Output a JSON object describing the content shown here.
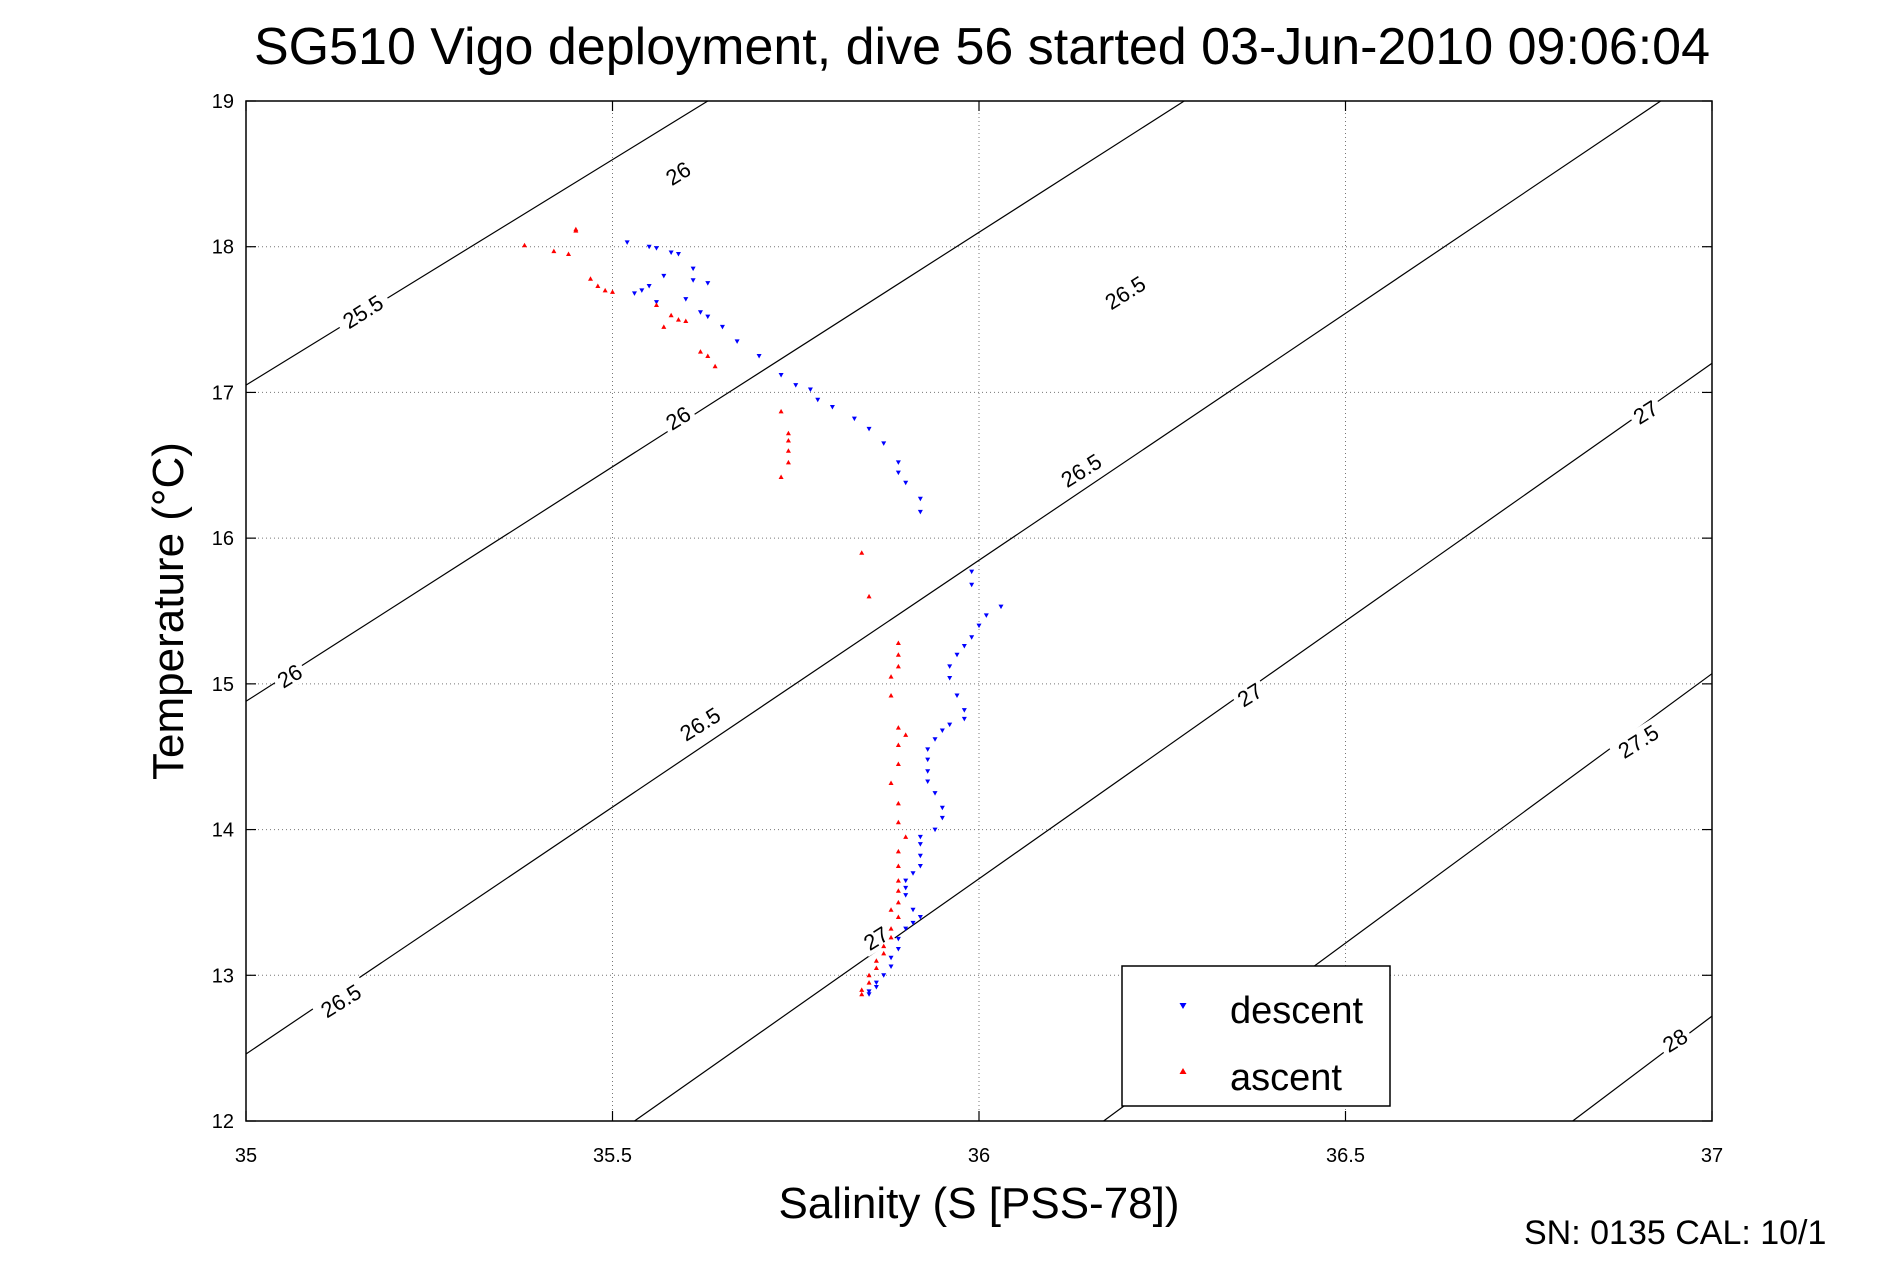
{
  "chart_data": {
    "type": "scatter",
    "title": "SG510 Vigo deployment, dive 56 started 03-Jun-2010 09:06:04",
    "xlabel": "Salinity (S [PSS-78])",
    "ylabel": "Temperature (°C)",
    "xlim": [
      35,
      37
    ],
    "ylim": [
      12,
      19
    ],
    "xticks": [
      35,
      35.5,
      36,
      36.5,
      37
    ],
    "xtick_labels": [
      "35",
      "35.5",
      "36",
      "36.5",
      "37"
    ],
    "yticks": [
      12,
      13,
      14,
      15,
      16,
      17,
      18,
      19
    ],
    "ytick_labels": [
      "12",
      "13",
      "14",
      "15",
      "16",
      "17",
      "18",
      "19"
    ],
    "grid": true,
    "legend_position": "bottom-right",
    "footer": "SN: 0135  CAL: 10/1",
    "density_contours": [
      {
        "level": 25.5,
        "label": "25.5",
        "points": [
          [
            35.0,
            17.05
          ],
          [
            35.63,
            19.0
          ]
        ]
      },
      {
        "level": 26.0,
        "label": "26",
        "points": [
          [
            35.0,
            14.88
          ],
          [
            36.28,
            19.0
          ]
        ]
      },
      {
        "level": 26.5,
        "label": "26.5",
        "points": [
          [
            35.0,
            12.46
          ],
          [
            36.93,
            19.0
          ]
        ]
      },
      {
        "level": 27.0,
        "label": "27",
        "points": [
          [
            35.53,
            12.0
          ],
          [
            37.0,
            17.2
          ]
        ]
      },
      {
        "level": 27.5,
        "label": "27.5",
        "points": [
          [
            36.17,
            12.0
          ],
          [
            37.0,
            15.07
          ]
        ]
      },
      {
        "level": 28.0,
        "label": "28",
        "points": [
          [
            36.81,
            12.0
          ],
          [
            37.0,
            12.72
          ]
        ]
      }
    ],
    "contour_labels": [
      {
        "text": "25.5",
        "s": 35.16,
        "t": 17.55
      },
      {
        "text": "26",
        "s": 35.59,
        "t": 18.5
      },
      {
        "text": "26",
        "s": 35.06,
        "t": 15.05
      },
      {
        "text": "26",
        "s": 35.59,
        "t": 16.82
      },
      {
        "text": "26.5",
        "s": 36.2,
        "t": 17.68
      },
      {
        "text": "26.5",
        "s": 35.13,
        "t": 12.82
      },
      {
        "text": "26.5",
        "s": 35.62,
        "t": 14.72
      },
      {
        "text": "26.5",
        "s": 36.14,
        "t": 16.46
      },
      {
        "text": "27",
        "s": 35.86,
        "t": 13.25
      },
      {
        "text": "27",
        "s": 36.37,
        "t": 14.92
      },
      {
        "text": "27",
        "s": 36.91,
        "t": 16.86
      },
      {
        "text": "27.5",
        "s": 36.9,
        "t": 14.6
      },
      {
        "text": "28",
        "s": 36.95,
        "t": 12.55
      }
    ],
    "series": [
      {
        "name": "descent",
        "color": "#0000ff",
        "marker": "triangle-down",
        "points": [
          [
            35.52,
            18.03
          ],
          [
            35.55,
            18.0
          ],
          [
            35.56,
            17.99
          ],
          [
            35.58,
            17.96
          ],
          [
            35.59,
            17.95
          ],
          [
            35.61,
            17.85
          ],
          [
            35.57,
            17.8
          ],
          [
            35.61,
            17.77
          ],
          [
            35.63,
            17.75
          ],
          [
            35.55,
            17.73
          ],
          [
            35.54,
            17.7
          ],
          [
            35.53,
            17.68
          ],
          [
            35.6,
            17.64
          ],
          [
            35.56,
            17.62
          ],
          [
            35.62,
            17.55
          ],
          [
            35.63,
            17.52
          ],
          [
            35.65,
            17.45
          ],
          [
            35.67,
            17.35
          ],
          [
            35.7,
            17.25
          ],
          [
            35.73,
            17.12
          ],
          [
            35.75,
            17.05
          ],
          [
            35.77,
            17.02
          ],
          [
            35.78,
            16.95
          ],
          [
            35.8,
            16.9
          ],
          [
            35.83,
            16.82
          ],
          [
            35.85,
            16.75
          ],
          [
            35.87,
            16.65
          ],
          [
            35.89,
            16.52
          ],
          [
            35.89,
            16.45
          ],
          [
            35.9,
            16.38
          ],
          [
            35.92,
            16.27
          ],
          [
            35.92,
            16.18
          ],
          [
            35.99,
            15.77
          ],
          [
            35.99,
            15.68
          ],
          [
            36.03,
            15.53
          ],
          [
            36.01,
            15.47
          ],
          [
            36.0,
            15.4
          ],
          [
            35.99,
            15.32
          ],
          [
            35.98,
            15.26
          ],
          [
            35.97,
            15.2
          ],
          [
            35.96,
            15.12
          ],
          [
            35.96,
            15.04
          ],
          [
            35.97,
            14.92
          ],
          [
            35.98,
            14.82
          ],
          [
            35.98,
            14.76
          ],
          [
            35.96,
            14.72
          ],
          [
            35.95,
            14.68
          ],
          [
            35.94,
            14.62
          ],
          [
            35.93,
            14.55
          ],
          [
            35.93,
            14.48
          ],
          [
            35.93,
            14.4
          ],
          [
            35.93,
            14.33
          ],
          [
            35.94,
            14.25
          ],
          [
            35.95,
            14.15
          ],
          [
            35.95,
            14.08
          ],
          [
            35.94,
            14.0
          ],
          [
            35.92,
            13.95
          ],
          [
            35.92,
            13.9
          ],
          [
            35.92,
            13.82
          ],
          [
            35.92,
            13.75
          ],
          [
            35.91,
            13.7
          ],
          [
            35.9,
            13.65
          ],
          [
            35.9,
            13.6
          ],
          [
            35.9,
            13.55
          ],
          [
            35.91,
            13.45
          ],
          [
            35.92,
            13.4
          ],
          [
            35.91,
            13.36
          ],
          [
            35.9,
            13.32
          ],
          [
            35.89,
            13.25
          ],
          [
            35.89,
            13.18
          ],
          [
            35.88,
            13.12
          ],
          [
            35.88,
            13.06
          ],
          [
            35.87,
            13.0
          ],
          [
            35.86,
            12.95
          ],
          [
            35.86,
            12.92
          ],
          [
            35.85,
            12.89
          ],
          [
            35.85,
            12.87
          ]
        ]
      },
      {
        "name": "ascent",
        "color": "#ff0000",
        "marker": "triangle-up",
        "points": [
          [
            35.38,
            18.01
          ],
          [
            35.42,
            17.97
          ],
          [
            35.44,
            17.95
          ],
          [
            35.45,
            18.12
          ],
          [
            35.45,
            18.11
          ],
          [
            35.47,
            17.78
          ],
          [
            35.48,
            17.73
          ],
          [
            35.49,
            17.7
          ],
          [
            35.5,
            17.69
          ],
          [
            35.56,
            17.6
          ],
          [
            35.58,
            17.53
          ],
          [
            35.59,
            17.5
          ],
          [
            35.6,
            17.49
          ],
          [
            35.57,
            17.45
          ],
          [
            35.62,
            17.28
          ],
          [
            35.63,
            17.25
          ],
          [
            35.64,
            17.18
          ],
          [
            35.73,
            16.87
          ],
          [
            35.74,
            16.72
          ],
          [
            35.74,
            16.67
          ],
          [
            35.74,
            16.6
          ],
          [
            35.74,
            16.52
          ],
          [
            35.73,
            16.42
          ],
          [
            35.84,
            15.9
          ],
          [
            35.85,
            15.6
          ],
          [
            35.89,
            15.28
          ],
          [
            35.89,
            15.2
          ],
          [
            35.89,
            15.12
          ],
          [
            35.88,
            15.05
          ],
          [
            35.88,
            14.92
          ],
          [
            35.89,
            14.7
          ],
          [
            35.9,
            14.65
          ],
          [
            35.89,
            14.58
          ],
          [
            35.89,
            14.45
          ],
          [
            35.88,
            14.32
          ],
          [
            35.89,
            14.18
          ],
          [
            35.89,
            14.05
          ],
          [
            35.9,
            13.95
          ],
          [
            35.89,
            13.85
          ],
          [
            35.89,
            13.75
          ],
          [
            35.89,
            13.65
          ],
          [
            35.89,
            13.58
          ],
          [
            35.89,
            13.5
          ],
          [
            35.88,
            13.45
          ],
          [
            35.89,
            13.4
          ],
          [
            35.88,
            13.32
          ],
          [
            35.88,
            13.26
          ],
          [
            35.87,
            13.2
          ],
          [
            35.87,
            13.15
          ],
          [
            35.86,
            13.1
          ],
          [
            35.86,
            13.05
          ],
          [
            35.85,
            13.0
          ],
          [
            35.85,
            12.95
          ],
          [
            35.84,
            12.9
          ],
          [
            35.84,
            12.87
          ]
        ]
      }
    ]
  }
}
